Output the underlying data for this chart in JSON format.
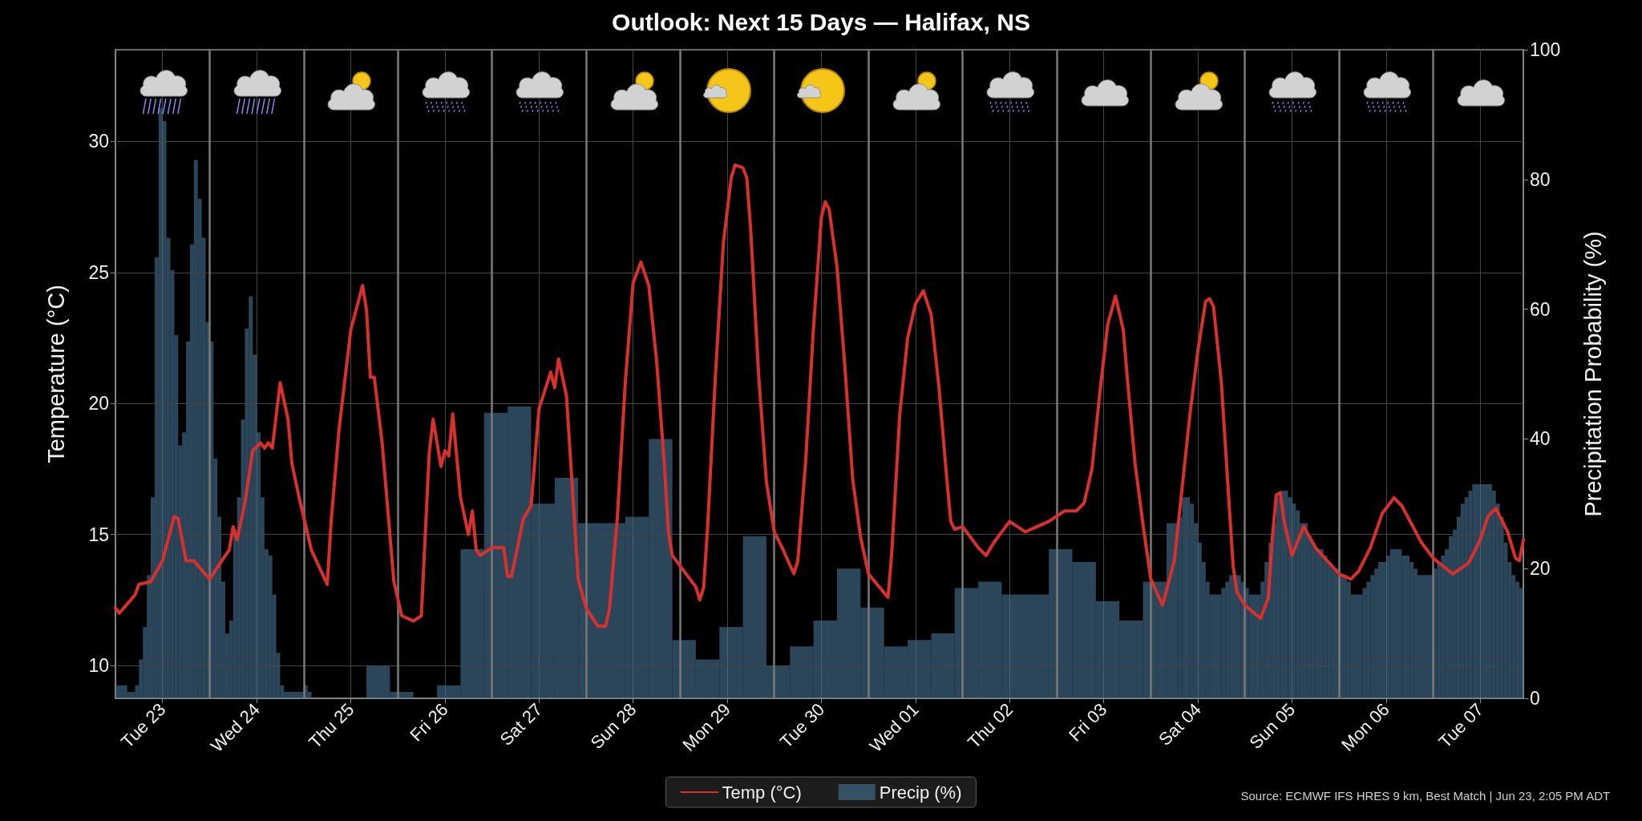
{
  "chart_data": {
    "type": "line",
    "title": "Outlook: Next 15 Days — Halifax, NS",
    "ylabel": "Temperature (°C)",
    "y2label": "Precipitation Probability (%)",
    "annotations": [
      "Source: ECMWF IFS HRES 9 km, Best Match | Jun 23, 2:05 PM ADT"
    ],
    "xlim": [
      "--06-23T00:00",
      "--07-07T23:00"
    ],
    "xticks": [
      {
        "value": "--06-23T12:00",
        "label": "Tue 23"
      },
      {
        "value": "--06-24T12:00",
        "label": "Wed 24"
      },
      {
        "value": "--06-25T12:00",
        "label": "Thu 25"
      },
      {
        "value": "--06-26T12:00",
        "label": "Fri 26"
      },
      {
        "value": "--06-27T12:00",
        "label": "Sat 27"
      },
      {
        "value": "--06-28T12:00",
        "label": "Sun 28"
      },
      {
        "value": "--06-29T12:00",
        "label": "Mon 29"
      },
      {
        "value": "--06-30T12:00",
        "label": "Tue 30"
      },
      {
        "value": "--07-01T12:00",
        "label": "Wed 01"
      },
      {
        "value": "--07-02T12:00",
        "label": "Thu 02"
      },
      {
        "value": "--07-03T12:00",
        "label": "Fri 03"
      },
      {
        "value": "--07-04T12:00",
        "label": "Sat 04"
      },
      {
        "value": "--07-05T12:00",
        "label": "Sun 05"
      },
      {
        "value": "--07-06T12:00",
        "label": "Mon 06"
      },
      {
        "value": "--07-07T12:00",
        "label": "Tue 07"
      }
    ],
    "ylim": [
      8.75,
      33.5
    ],
    "yticks": [
      10,
      15,
      20,
      25,
      30
    ],
    "y2lim": [
      0,
      100
    ],
    "y2ticks": [
      0,
      20,
      40,
      60,
      80,
      100
    ],
    "grid": true,
    "legend": "bottom",
    "ref_lines": [
      {
        "axis": "x",
        "value": "--06-24T00:00",
        "color": "#7a7a7a"
      },
      {
        "axis": "x",
        "value": "--06-25T00:00",
        "color": "#7a7a7a"
      },
      {
        "axis": "x",
        "value": "--06-26T00:00",
        "color": "#7a7a7a"
      },
      {
        "axis": "x",
        "value": "--06-27T00:00",
        "color": "#7a7a7a"
      },
      {
        "axis": "x",
        "value": "--06-28T00:00",
        "color": "#7a7a7a"
      },
      {
        "axis": "x",
        "value": "--06-29T00:00",
        "color": "#7a7a7a"
      },
      {
        "axis": "x",
        "value": "--06-30T00:00",
        "color": "#7a7a7a"
      },
      {
        "axis": "x",
        "value": "--07-01T00:00",
        "color": "#7a7a7a"
      },
      {
        "axis": "x",
        "value": "--07-02T00:00",
        "color": "#7a7a7a"
      },
      {
        "axis": "x",
        "value": "--07-03T00:00",
        "color": "#7a7a7a"
      },
      {
        "axis": "x",
        "value": "--07-04T00:00",
        "color": "#7a7a7a"
      },
      {
        "axis": "x",
        "value": "--07-05T00:00",
        "color": "#7a7a7a"
      },
      {
        "axis": "x",
        "value": "--07-06T00:00",
        "color": "#7a7a7a"
      },
      {
        "axis": "x",
        "value": "--07-07T00:00",
        "color": "#7a7a7a"
      }
    ],
    "series": [
      {
        "name": "Temp (°C)",
        "color": "#d8302f",
        "x": [
          "--06-23T00:00",
          "--06-23T01:00",
          "--06-23T05:00",
          "--06-23T06:00",
          "--06-23T09:00",
          "--06-23T12:00",
          "--06-23T15:00",
          "--06-23T16:00",
          "--06-23T18:00",
          "--06-23T20:00",
          "--06-24T00:00",
          "--06-24T04:00",
          "--06-24T05:00",
          "--06-24T06:00",
          "--06-24T07:00",
          "--06-24T09:00",
          "--06-24T11:00",
          "--06-24T13:00",
          "--06-24T14:00",
          "--06-24T15:00",
          "--06-24T16:00",
          "--06-24T18:00",
          "--06-24T20:00",
          "--06-24T21:00",
          "--06-24T23:00",
          "--06-25T02:00",
          "--06-25T06:00",
          "--06-25T07:00",
          "--06-25T09:00",
          "--06-25T12:00",
          "--06-25T15:00",
          "--06-25T16:00",
          "--06-25T17:00",
          "--06-25T18:00",
          "--06-25T20:00",
          "--06-25T23:00",
          "--06-26T01:00",
          "--06-26T04:00",
          "--06-26T06:00",
          "--06-26T08:00",
          "--06-26T09:00",
          "--06-26T11:00",
          "--06-26T12:00",
          "--06-26T13:00",
          "--06-26T14:00",
          "--06-26T16:00",
          "--06-26T18:00",
          "--06-26T19:00",
          "--06-26T20:00",
          "--06-26T21:00",
          "--06-27T00:00",
          "--06-27T03:00",
          "--06-27T04:00",
          "--06-27T05:00",
          "--06-27T08:00",
          "--06-27T10:00",
          "--06-27T12:00",
          "--06-27T15:00",
          "--06-27T16:00",
          "--06-27T17:00",
          "--06-27T19:00",
          "--06-27T22:00",
          "--06-28T00:00",
          "--06-28T03:00",
          "--06-28T05:00",
          "--06-28T06:00",
          "--06-28T08:00",
          "--06-28T10:00",
          "--06-28T12:00",
          "--06-28T14:00",
          "--06-28T16:00",
          "--06-28T18:00",
          "--06-28T20:00",
          "--06-28T21:00",
          "--06-28T22:00",
          "--06-29T04:00",
          "--06-29T05:00",
          "--06-29T06:00",
          "--06-29T07:00",
          "--06-29T09:00",
          "--06-29T11:00",
          "--06-29T13:00",
          "--06-29T14:00",
          "--06-29T16:00",
          "--06-29T17:00",
          "--06-29T18:00",
          "--06-29T20:00",
          "--06-29T22:00",
          "--06-30T00:00",
          "--06-30T02:00",
          "--06-30T05:00",
          "--06-30T06:00",
          "--06-30T08:00",
          "--06-30T10:00",
          "--06-30T12:00",
          "--06-30T13:00",
          "--06-30T14:00",
          "--06-30T16:00",
          "--06-30T18:00",
          "--06-30T20:00",
          "--06-30T22:00",
          "--07-01T00:00",
          "--07-01T05:00",
          "--07-01T06:00",
          "--07-01T08:00",
          "--07-01T10:00",
          "--07-01T12:00",
          "--07-01T14:00",
          "--07-01T16:00",
          "--07-01T18:00",
          "--07-01T20:00",
          "--07-01T21:00",
          "--07-01T22:00",
          "--07-02T00:00",
          "--07-02T04:00",
          "--07-02T06:00",
          "--07-02T08:00",
          "--07-02T12:00",
          "--07-02T16:00",
          "--07-02T22:00",
          "--07-03T02:00",
          "--07-03T05:00",
          "--07-03T07:00",
          "--07-03T09:00",
          "--07-03T11:00",
          "--07-03T13:00",
          "--07-03T15:00",
          "--07-03T17:00",
          "--07-03T18:00",
          "--07-03T20:00",
          "--07-03T22:00",
          "--07-04T00:00",
          "--07-04T03:00",
          "--07-04T06:00",
          "--07-04T08:00",
          "--07-04T10:00",
          "--07-04T12:00",
          "--07-04T14:00",
          "--07-04T15:00",
          "--07-04T16:00",
          "--07-04T18:00",
          "--07-04T20:00",
          "--07-04T21:00",
          "--07-04T22:00",
          "--07-05T00:00",
          "--07-05T04:00",
          "--07-05T06:00",
          "--07-05T07:00",
          "--07-05T08:00",
          "--07-05T09:00",
          "--07-05T10:00",
          "--07-05T12:00",
          "--07-05T15:00",
          "--07-05T18:00",
          "--07-06T00:00",
          "--07-06T03:00",
          "--07-06T05:00",
          "--07-06T08:00",
          "--07-06T11:00",
          "--07-06T14:00",
          "--07-06T16:00",
          "--07-06T21:00",
          "--07-07T00:00",
          "--07-07T05:00",
          "--07-07T09:00",
          "--07-07T12:00",
          "--07-07T14:00",
          "--07-07T16:00",
          "--07-07T19:00",
          "--07-07T21:00",
          "--07-07T22:00",
          "--07-07T23:00"
        ],
        "values": [
          12.2,
          12.0,
          12.7,
          13.1,
          13.2,
          14.0,
          15.7,
          15.6,
          14.0,
          14.0,
          13.3,
          14.2,
          14.4,
          15.3,
          14.8,
          16.2,
          18.2,
          18.5,
          18.3,
          18.5,
          18.3,
          20.8,
          19.4,
          17.7,
          16.3,
          14.4,
          13.1,
          15.5,
          19.0,
          22.8,
          24.5,
          23.6,
          21.0,
          21.0,
          18.5,
          13.2,
          11.9,
          11.7,
          11.9,
          18.1,
          19.4,
          17.6,
          18.2,
          18.0,
          19.6,
          16.4,
          15.0,
          15.9,
          14.4,
          14.2,
          14.5,
          14.5,
          13.4,
          13.4,
          15.6,
          16.1,
          19.8,
          21.2,
          20.6,
          21.7,
          20.3,
          13.3,
          12.2,
          11.5,
          11.5,
          12.2,
          15.7,
          20.8,
          24.6,
          25.4,
          24.5,
          21.6,
          17.6,
          15.1,
          14.2,
          13.0,
          12.5,
          13.0,
          15.3,
          21.1,
          26.1,
          28.6,
          29.1,
          29.0,
          28.6,
          26.6,
          21.1,
          17.0,
          15.1,
          14.5,
          13.5,
          14.0,
          17.8,
          22.9,
          27.1,
          27.7,
          27.4,
          25.2,
          21.4,
          17.1,
          14.9,
          13.5,
          12.6,
          14.4,
          19.6,
          22.5,
          23.8,
          24.3,
          23.4,
          20.6,
          17.1,
          15.5,
          15.2,
          15.3,
          14.5,
          14.2,
          14.7,
          15.5,
          15.1,
          15.5,
          15.9,
          15.9,
          16.2,
          17.5,
          20.4,
          23.0,
          24.1,
          22.8,
          21.0,
          17.7,
          15.4,
          13.3,
          12.3,
          14.0,
          16.8,
          19.6,
          22.0,
          23.9,
          24.0,
          23.7,
          20.8,
          16.1,
          13.8,
          12.8,
          12.3,
          11.8,
          12.6,
          14.9,
          16.5,
          16.6,
          15.5,
          14.2,
          15.3,
          14.5,
          13.5,
          13.3,
          13.6,
          14.5,
          15.8,
          16.4,
          16.1,
          14.7,
          14.1,
          13.5,
          13.9,
          14.8,
          15.7,
          16.0,
          15.1,
          14.1,
          14.0,
          14.8
        ]
      },
      {
        "name": "Precip (%)",
        "type": "histogram",
        "axis": "y2",
        "color": "#2b4559",
        "bins": [
          "--06-23T00:00",
          "--06-23T03:00",
          "--06-23T05:00",
          "--06-23T06:00",
          "--06-23T07:00",
          "--06-23T08:00",
          "--06-23T09:00",
          "--06-23T10:00",
          "--06-23T11:00",
          "--06-23T12:00",
          "--06-23T13:00",
          "--06-23T14:00",
          "--06-23T15:00",
          "--06-23T16:00",
          "--06-23T17:00",
          "--06-23T18:00",
          "--06-23T19:00",
          "--06-23T20:00",
          "--06-23T21:00",
          "--06-23T22:00",
          "--06-23T23:00",
          "--06-24T00:00",
          "--06-24T01:00",
          "--06-24T02:00",
          "--06-24T03:00",
          "--06-24T04:00",
          "--06-24T05:00",
          "--06-24T06:00",
          "--06-24T07:00",
          "--06-24T08:00",
          "--06-24T09:00",
          "--06-24T10:00",
          "--06-24T11:00",
          "--06-24T12:00",
          "--06-24T13:00",
          "--06-24T14:00",
          "--06-24T15:00",
          "--06-24T16:00",
          "--06-24T17:00",
          "--06-24T18:00",
          "--06-24T19:00",
          "--06-25T00:00",
          "--06-25T01:00",
          "--06-25T02:00",
          "--06-25T16:00",
          "--06-25T22:00",
          "--06-26T04:00",
          "--06-26T10:00",
          "--06-26T16:00",
          "--06-26T22:00",
          "--06-27T04:00",
          "--06-27T10:00",
          "--06-27T16:00",
          "--06-27T22:00",
          "--06-28T10:00",
          "--06-28T16:00",
          "--06-28T22:00",
          "--06-29T04:00",
          "--06-29T10:00",
          "--06-29T16:00",
          "--06-29T22:00",
          "--06-30T04:00",
          "--06-30T10:00",
          "--06-30T16:00",
          "--06-30T22:00",
          "--07-01T04:00",
          "--07-01T10:00",
          "--07-01T16:00",
          "--07-01T22:00",
          "--07-02T04:00",
          "--07-02T10:00",
          "--07-02T22:00",
          "--07-03T04:00",
          "--07-03T10:00",
          "--07-03T16:00",
          "--07-03T22:00",
          "--07-04T04:00",
          "--07-04T07:00",
          "--07-04T08:00",
          "--07-04T10:00",
          "--07-04T11:00",
          "--07-04T12:00",
          "--07-04T13:00",
          "--07-04T14:00",
          "--07-04T15:00",
          "--07-04T18:00",
          "--07-04T19:00",
          "--07-04T20:00",
          "--07-04T23:00",
          "--07-05T00:00",
          "--07-05T01:00",
          "--07-05T04:00",
          "--07-05T05:00",
          "--07-05T06:00",
          "--07-05T07:00",
          "--07-05T08:00",
          "--07-05T09:00",
          "--07-05T11:00",
          "--07-05T12:00",
          "--07-05T13:00",
          "--07-05T14:00",
          "--07-05T16:00",
          "--07-05T17:00",
          "--07-05T18:00",
          "--07-05T20:00",
          "--07-05T21:00",
          "--07-05T22:00",
          "--07-06T00:00",
          "--07-06T02:00",
          "--07-06T03:00",
          "--07-06T06:00",
          "--07-06T07:00",
          "--07-06T08:00",
          "--07-06T09:00",
          "--07-06T10:00",
          "--07-06T12:00",
          "--07-06T13:00",
          "--07-06T16:00",
          "--07-06T18:00",
          "--07-06T19:00",
          "--07-06T20:00",
          "--07-07T00:00",
          "--07-07T01:00",
          "--07-07T02:00",
          "--07-07T03:00",
          "--07-07T04:00",
          "--07-07T05:00",
          "--07-07T06:00",
          "--07-07T07:00",
          "--07-07T08:00",
          "--07-07T09:00",
          "--07-07T10:00",
          "--07-07T15:00",
          "--07-07T16:00",
          "--07-07T17:00",
          "--07-07T18:00",
          "--07-07T19:00",
          "--07-07T20:00",
          "--07-07T21:00",
          "--07-07T22:00",
          "--07-07T23:00"
        ],
        "values": [
          2,
          1,
          2,
          6,
          11,
          19,
          31,
          68,
          91,
          89,
          71,
          66,
          56,
          39,
          41,
          55,
          70,
          83,
          77,
          71,
          58,
          55,
          37,
          28,
          18,
          10,
          12,
          26,
          31,
          43,
          57,
          62,
          53,
          41,
          31,
          23,
          22,
          16,
          7,
          2,
          1,
          2,
          1,
          0,
          5,
          1,
          0,
          2,
          23,
          44,
          45,
          30,
          34,
          27,
          28,
          40,
          9,
          6,
          11,
          25,
          5,
          8,
          12,
          20,
          14,
          8,
          9,
          10,
          17,
          18,
          16,
          23,
          21,
          15,
          12,
          18,
          27,
          28,
          31,
          30,
          27,
          24,
          21,
          18,
          16,
          17,
          18,
          19,
          18,
          17,
          16,
          18,
          21,
          24,
          27,
          31,
          32,
          31,
          30,
          29,
          27,
          25,
          24,
          23,
          22,
          21,
          20,
          19,
          18,
          16,
          17,
          18,
          19,
          20,
          21,
          22,
          23,
          22,
          21,
          20,
          19,
          20,
          21,
          22,
          23,
          25,
          26,
          28,
          30,
          31,
          32,
          33,
          32,
          30,
          28,
          24,
          21,
          19,
          18,
          17
        ]
      }
    ]
  }
}
